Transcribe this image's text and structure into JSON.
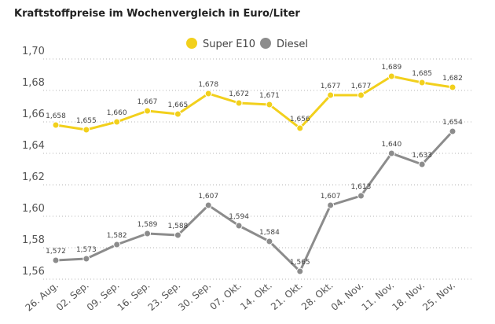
{
  "chart_data": {
    "type": "line",
    "title": "Kraftstoffpreise im Wochenvergleich in Euro/Liter",
    "categories": [
      "26. Aug.",
      "02. Sep.",
      "09. Sep.",
      "16. Sep.",
      "23. Sep.",
      "30. Sep.",
      "07. Okt.",
      "14. Okt.",
      "21. Okt.",
      "28. Okt.",
      "04. Nov.",
      "11. Nov.",
      "18. Nov.",
      "25. Nov."
    ],
    "series": [
      {
        "name": "Super E10",
        "color": "#f2d01c",
        "values": [
          1.658,
          1.655,
          1.66,
          1.667,
          1.665,
          1.678,
          1.672,
          1.671,
          1.656,
          1.677,
          1.677,
          1.689,
          1.685,
          1.682
        ],
        "labels": [
          "1,658",
          "1,655",
          "1,660",
          "1,667",
          "1,665",
          "1,678",
          "1,672",
          "1,671",
          "1,656",
          "1,677",
          "1,677",
          "1,689",
          "1,685",
          "1,682"
        ]
      },
      {
        "name": "Diesel",
        "color": "#8c8c8c",
        "values": [
          1.572,
          1.573,
          1.582,
          1.589,
          1.588,
          1.607,
          1.594,
          1.584,
          1.565,
          1.607,
          1.613,
          1.64,
          1.633,
          1.654
        ],
        "labels": [
          "1,572",
          "1,573",
          "1,582",
          "1,589",
          "1,588",
          "1,607",
          "1,594",
          "1,584",
          "1,565",
          "1,607",
          "1,613",
          "1,640",
          "1,633",
          "1,654"
        ]
      }
    ],
    "y_ticks": [
      1.56,
      1.58,
      1.6,
      1.62,
      1.64,
      1.66,
      1.68,
      1.7
    ],
    "y_tick_labels": [
      "1,56",
      "1,58",
      "1,60",
      "1,62",
      "1,64",
      "1,66",
      "1,68",
      "1,70"
    ],
    "ylim": [
      1.56,
      1.7
    ],
    "grid": "horizontal-dotted",
    "legend": "top-center",
    "xlabel": "",
    "ylabel": ""
  }
}
